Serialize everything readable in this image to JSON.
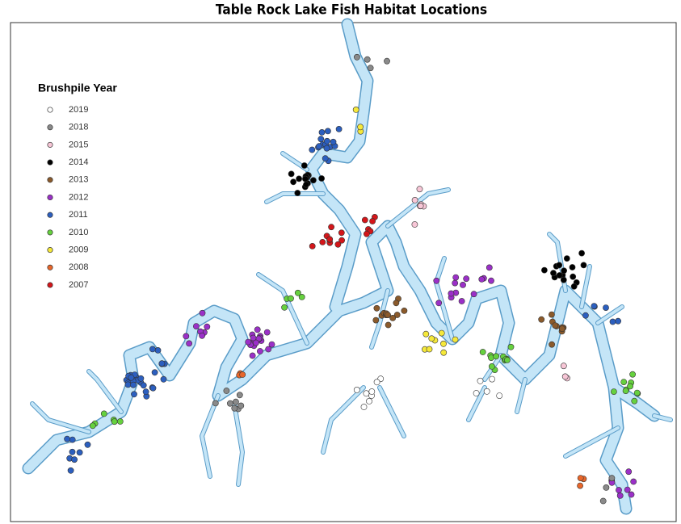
{
  "title": "Table Rock Lake Fish Habitat Locations",
  "legend": {
    "title": "Brushpile Year",
    "entries": [
      {
        "label": "2019",
        "color": "#ffffff"
      },
      {
        "label": "2018",
        "color": "#8a8a8a"
      },
      {
        "label": "2015",
        "color": "#f7c6d6"
      },
      {
        "label": "2014",
        "color": "#000000"
      },
      {
        "label": "2013",
        "color": "#8b5a2b"
      },
      {
        "label": "2012",
        "color": "#9b30c8"
      },
      {
        "label": "2011",
        "color": "#2c5fbf"
      },
      {
        "label": "2010",
        "color": "#66d13e"
      },
      {
        "label": "2009",
        "color": "#f5e83a"
      },
      {
        "label": "2008",
        "color": "#e8662a"
      },
      {
        "label": "2007",
        "color": "#d4161a"
      }
    ]
  }
}
